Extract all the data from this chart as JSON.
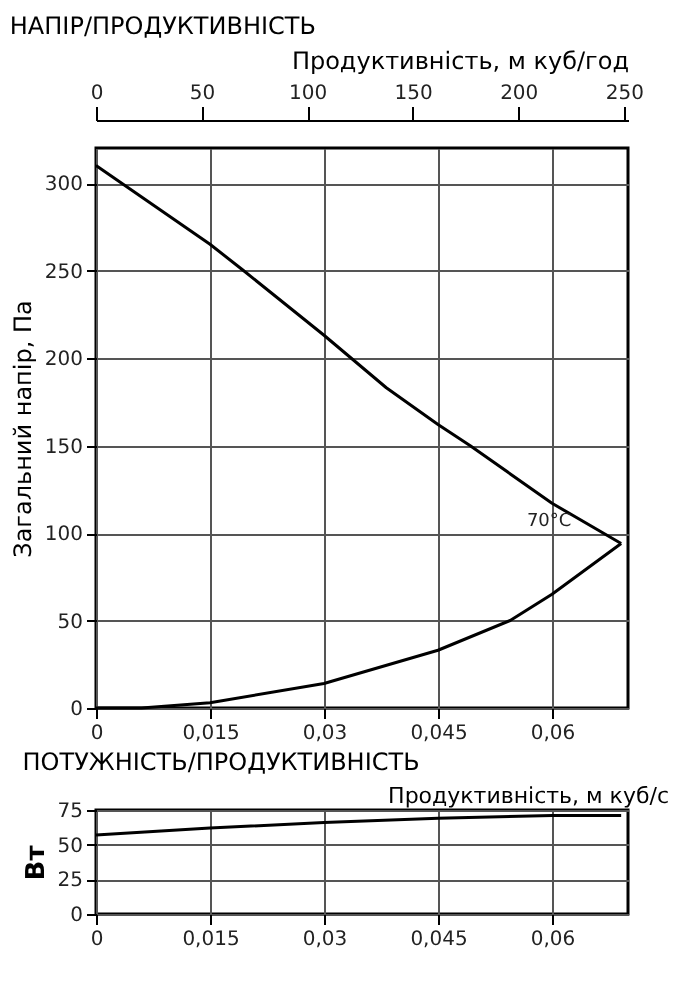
{
  "chart_data": [
    {
      "type": "line",
      "title": "НАПІР/ПРОДУКТИВНІСТЬ",
      "ylabel": "Загальний напір, Па",
      "x2label": "Продуктивність, м куб/год",
      "xlim": [
        0,
        0.07
      ],
      "xticks": [
        0,
        {
          "value": 0.015,
          "label": "0,015"
        },
        {
          "value": 0.03,
          "label": "0,03"
        },
        {
          "value": 0.045,
          "label": "0,045"
        },
        {
          "value": 0.06,
          "label": "0,06"
        }
      ],
      "ylim": [
        0,
        320
      ],
      "yticks": [
        0,
        50,
        100,
        150,
        200,
        250,
        300
      ],
      "x2lim": [
        0,
        252
      ],
      "x2ticks": [
        0,
        50,
        100,
        150,
        200,
        250
      ],
      "grid": true,
      "annotations": [
        "70°C"
      ],
      "series": [
        {
          "color": "#000000",
          "x": [
            0,
            0.015,
            0.0194,
            0.03,
            0.0382,
            0.045,
            0.0492,
            0.06,
            0.0691
          ],
          "values": [
            310,
            265,
            250,
            213,
            183,
            162,
            150,
            117,
            94
          ]
        },
        {
          "color": "#000000",
          "x": [
            0,
            0.006,
            0.015,
            0.03,
            0.045,
            0.0545,
            0.06,
            0.0691
          ],
          "values": [
            0,
            0,
            3,
            14,
            33,
            50,
            65,
            94
          ]
        }
      ]
    },
    {
      "type": "line",
      "title": "ПОТУЖНІСТЬ/ПРОДУКТИВНІСТЬ",
      "xlabel": "Продуктивність, м куб/с",
      "ylabel": "Вт",
      "xlim": [
        0,
        0.07
      ],
      "xticks": [
        0,
        {
          "value": 0.015,
          "label": "0,015"
        },
        {
          "value": 0.03,
          "label": "0,03"
        },
        {
          "value": 0.045,
          "label": "0,045"
        },
        {
          "value": 0.06,
          "label": "0,06"
        }
      ],
      "ylim": [
        0,
        75
      ],
      "yticks": [
        0,
        25,
        50,
        75
      ],
      "grid": true,
      "series": [
        {
          "color": "#000000",
          "x": [
            0,
            0.015,
            0.03,
            0.045,
            0.06,
            0.0691
          ],
          "values": [
            57,
            62,
            66,
            69,
            71,
            71
          ]
        }
      ]
    }
  ]
}
